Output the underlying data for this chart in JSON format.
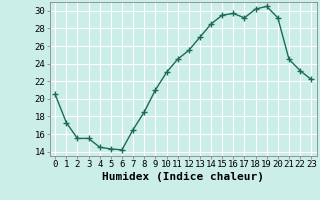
{
  "x": [
    0,
    1,
    2,
    3,
    4,
    5,
    6,
    7,
    8,
    9,
    10,
    11,
    12,
    13,
    14,
    15,
    16,
    17,
    18,
    19,
    20,
    21,
    22,
    23
  ],
  "y": [
    20.5,
    17.3,
    15.5,
    15.5,
    14.5,
    14.3,
    14.2,
    16.5,
    18.5,
    21.0,
    23.0,
    24.5,
    25.5,
    27.0,
    28.5,
    29.5,
    29.7,
    29.2,
    30.2,
    30.5,
    29.2,
    24.5,
    23.2,
    22.2
  ],
  "line_color": "#1a6b5a",
  "marker": "+",
  "markersize": 4,
  "linewidth": 1.0,
  "bg_color": "#cceee8",
  "grid_color": "#ffffff",
  "xlabel": "Humidex (Indice chaleur)",
  "xlabel_fontsize": 8,
  "xlim": [
    -0.5,
    23.5
  ],
  "ylim": [
    13.5,
    31.0
  ],
  "yticks": [
    14,
    16,
    18,
    20,
    22,
    24,
    26,
    28,
    30
  ],
  "xticks": [
    0,
    1,
    2,
    3,
    4,
    5,
    6,
    7,
    8,
    9,
    10,
    11,
    12,
    13,
    14,
    15,
    16,
    17,
    18,
    19,
    20,
    21,
    22,
    23
  ],
  "tick_fontsize": 6.5,
  "spine_color": "#888888"
}
